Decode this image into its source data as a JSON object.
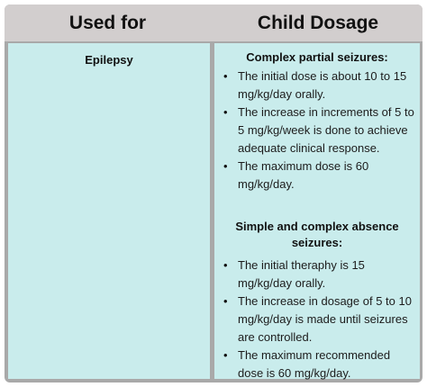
{
  "header": {
    "col1": "Used for",
    "col2": "Child Dosage"
  },
  "row": {
    "use": "Epilepsy",
    "sections": [
      {
        "title": "Complex partial seizures:",
        "items": [
          "The initial dose is about 10 to 15 mg/kg/day orally.",
          "The increase in increments of 5 to 5 mg/kg/week is done to achieve adequate clinical response.",
          "The maximum dose is 60 mg/kg/day."
        ]
      },
      {
        "title_line1": "Simple and complex absence",
        "title_line2": "seizures:",
        "items": [
          "The initial theraphy is 15 mg/kg/day orally.",
          "The increase in dosage of 5 to 10 mg/kg/day is made until seizures are controlled.",
          "The maximum recommended dose is 60 mg/kg/day."
        ]
      }
    ]
  }
}
